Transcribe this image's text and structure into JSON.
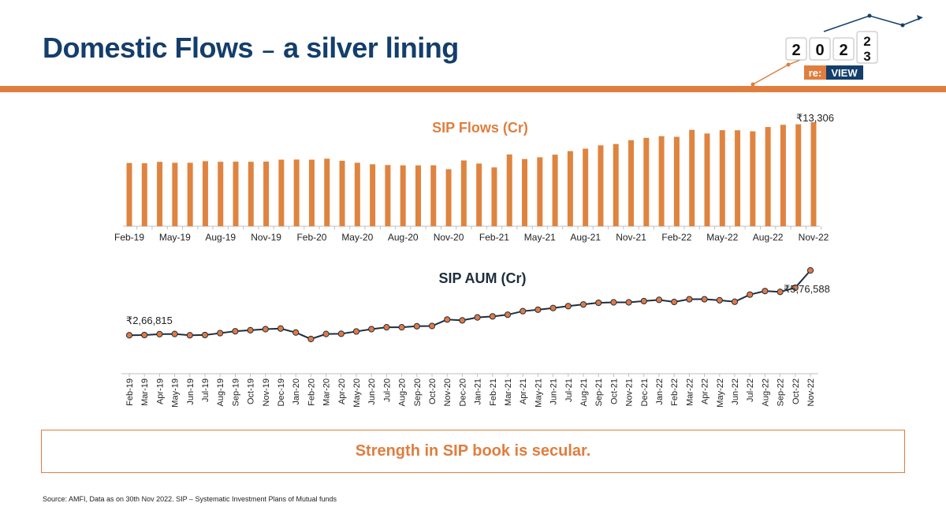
{
  "header": {
    "title_main": "Domestic Flows",
    "title_dash": "–",
    "title_sub": "a silver lining"
  },
  "logo": {
    "digits": [
      "2",
      "0",
      "2"
    ],
    "stacked_top": "2",
    "stacked_bottom": "3",
    "badge_prefix": "re:",
    "badge_suffix": "VIEW"
  },
  "colors": {
    "brand_navy": "#143e6b",
    "accent_orange": "#df7e3e",
    "bar_orange": "#df8440",
    "line_dark": "#1f2d3d"
  },
  "chart_data": [
    {
      "type": "bar",
      "title": "SIP Flows (Cr)",
      "categories": [
        "Feb-19",
        "Mar-19",
        "Apr-19",
        "May-19",
        "Jun-19",
        "Jul-19",
        "Aug-19",
        "Sep-19",
        "Oct-19",
        "Nov-19",
        "Dec-19",
        "Jan-20",
        "Feb-20",
        "Mar-20",
        "Apr-20",
        "May-20",
        "Jun-20",
        "Jul-20",
        "Aug-20",
        "Sep-20",
        "Oct-20",
        "Nov-20",
        "Dec-20",
        "Jan-21",
        "Feb-21",
        "Mar-21",
        "Apr-21",
        "May-21",
        "Jun-21",
        "Jul-21",
        "Aug-21",
        "Sep-21",
        "Oct-21",
        "Nov-21",
        "Dec-21",
        "Jan-22",
        "Feb-22",
        "Mar-22",
        "Apr-22",
        "May-22",
        "Jun-22",
        "Jul-22",
        "Aug-22",
        "Sep-22",
        "Oct-22",
        "Nov-22"
      ],
      "tick_labels": [
        "Feb-19",
        "May-19",
        "Aug-19",
        "Nov-19",
        "Feb-20",
        "May-20",
        "Aug-20",
        "Nov-20",
        "Feb-21",
        "May-21",
        "Aug-21",
        "Nov-21",
        "Feb-22",
        "May-22",
        "Aug-22",
        "Nov-22"
      ],
      "values": [
        8095,
        8055,
        8238,
        8122,
        8122,
        8324,
        8245,
        8263,
        8246,
        8273,
        8518,
        8532,
        8513,
        8641,
        8376,
        8123,
        7927,
        7831,
        7792,
        7788,
        7800,
        7302,
        8418,
        8023,
        7528,
        9182,
        8596,
        8819,
        9156,
        9609,
        9923,
        10351,
        10519,
        11005,
        11305,
        11517,
        11438,
        12328,
        11863,
        12286,
        12276,
        12140,
        12693,
        12976,
        13041,
        13306
      ],
      "annotations": [
        {
          "category": "Nov-22",
          "label": "₹13,306"
        }
      ],
      "ylim": [
        0,
        13500
      ]
    },
    {
      "type": "line",
      "title": "SIP AUM (Cr)",
      "x": [
        "Feb-19",
        "Mar-19",
        "Apr-19",
        "May-19",
        "Jun-19",
        "Jul-19",
        "Aug-19",
        "Sep-19",
        "Oct-19",
        "Nov-19",
        "Dec-19",
        "Jan-20",
        "Feb-20",
        "Mar-20",
        "Apr-20",
        "May-20",
        "Jun-20",
        "Jul-20",
        "Aug-20",
        "Sep-20",
        "Oct-20",
        "Nov-20",
        "Dec-20",
        "Jan-21",
        "Feb-21",
        "Mar-21",
        "Apr-21",
        "May-21",
        "Jun-21",
        "Jul-21",
        "Aug-21",
        "Sep-21",
        "Oct-21",
        "Nov-21",
        "Dec-21",
        "Jan-22",
        "Feb-22",
        "Mar-22",
        "Apr-22",
        "May-22",
        "Jun-22",
        "Jul-22",
        "Aug-22",
        "Sep-22",
        "Oct-22",
        "Nov-22"
      ],
      "values": [
        266815,
        268000,
        272000,
        273000,
        267000,
        268000,
        277000,
        286000,
        291000,
        296000,
        299000,
        280000,
        249000,
        273000,
        274000,
        285000,
        296000,
        305000,
        305000,
        310000,
        311000,
        342000,
        338000,
        352000,
        357000,
        365000,
        382000,
        389000,
        397000,
        406000,
        414000,
        422000,
        424000,
        424000,
        430000,
        436000,
        426000,
        439000,
        439000,
        434000,
        427000,
        461000,
        478000,
        474000,
        494000,
        576588
      ],
      "annotations": [
        {
          "category": "Feb-19",
          "label": "₹2,66,815"
        },
        {
          "category": "Nov-22",
          "label": "₹5,76,588"
        }
      ],
      "ylim": [
        240000,
        600000
      ]
    }
  ],
  "callout": "Strength in SIP book is secular.",
  "footnote": "Source: AMFI, Data as on 30th Nov 2022. SIP – Systematic Investment Plans of Mutual funds"
}
